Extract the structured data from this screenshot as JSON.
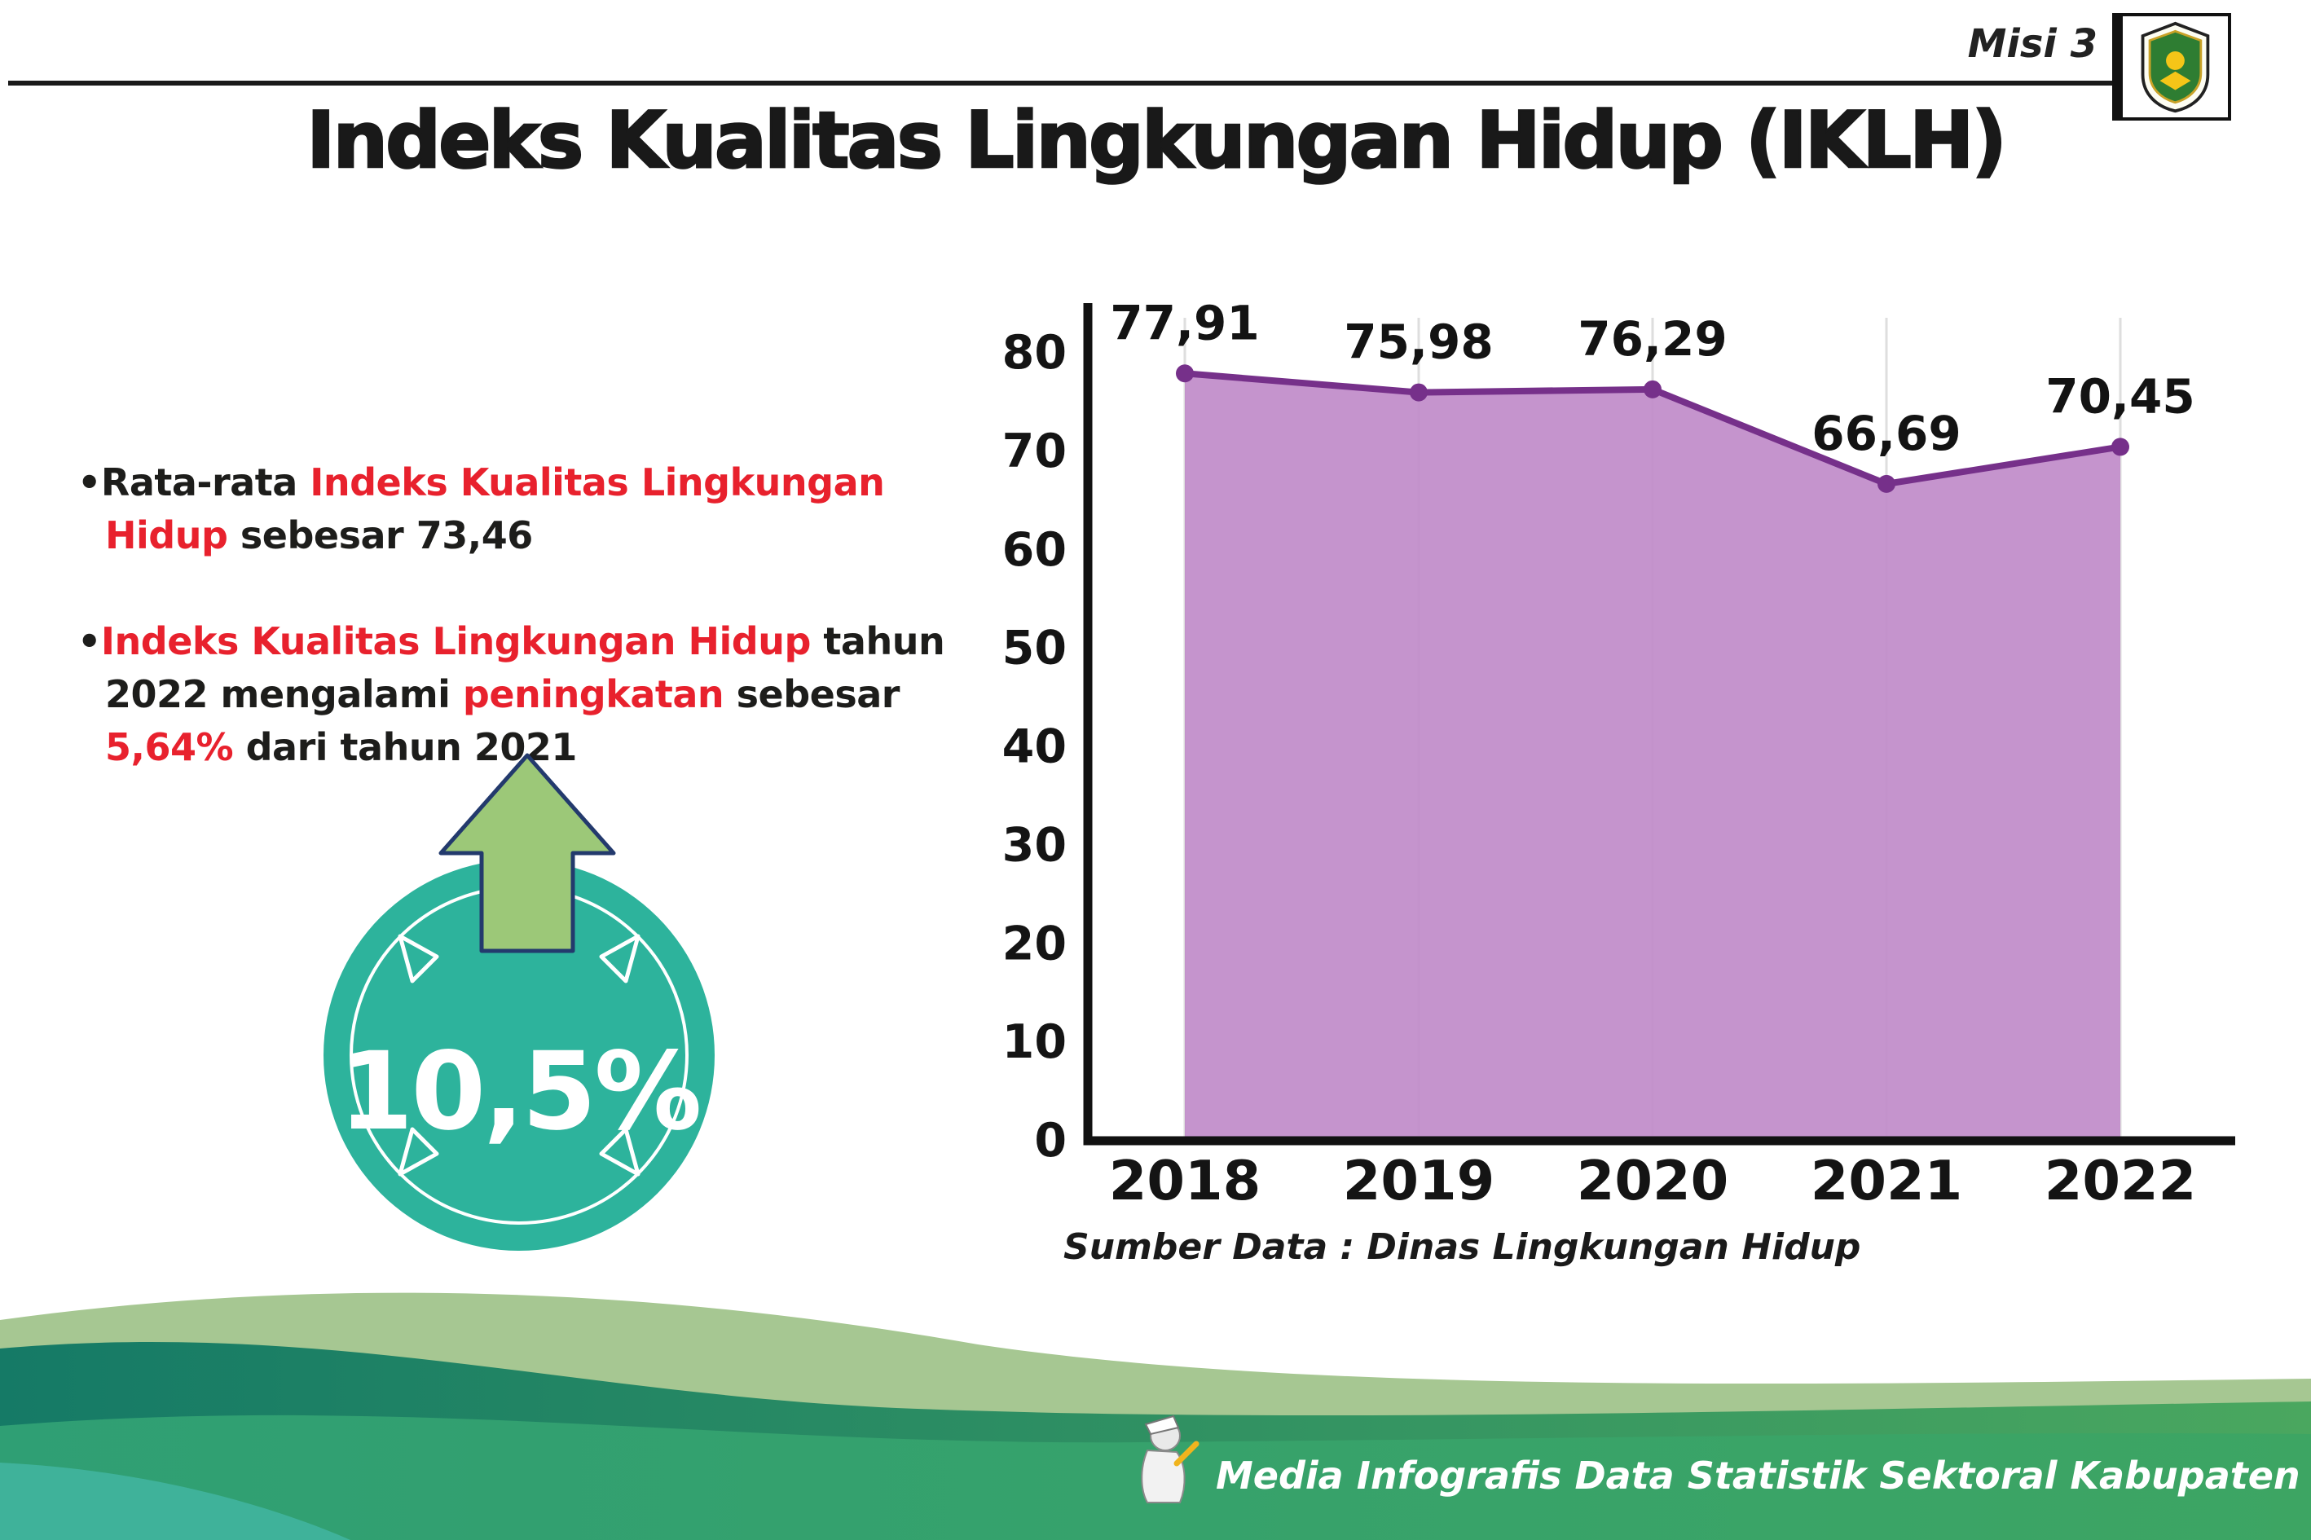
{
  "header": {
    "misi_label": "Misi 3"
  },
  "title": "Indeks Kualitas Lingkungan Hidup (IKLH)",
  "bullets": [
    {
      "segments": [
        {
          "text": "Rata-rata ",
          "color": "black"
        },
        {
          "text": "Indeks Kualitas Lingkungan Hidup",
          "color": "red"
        },
        {
          "text": " sebesar 73,46",
          "color": "black"
        }
      ]
    },
    {
      "segments": [
        {
          "text": "Indeks Kualitas Lingkungan Hidup",
          "color": "red"
        },
        {
          "text": " tahun 2022 mengalami ",
          "color": "black"
        },
        {
          "text": "peningkatan",
          "color": "red"
        },
        {
          "text": " sebesar ",
          "color": "black"
        },
        {
          "text": "5,64%",
          "color": "red"
        },
        {
          "text": " dari tahun 2021",
          "color": "black"
        }
      ]
    }
  ],
  "badge": {
    "value": "10,5%"
  },
  "chart_data": {
    "type": "area",
    "title": "Indeks Kualitas Lingkungan Hidup (IKLH) 2018-2022",
    "categories": [
      "2018",
      "2019",
      "2020",
      "2021",
      "2022"
    ],
    "values": [
      77.91,
      75.98,
      76.29,
      66.69,
      70.45
    ],
    "point_labels": [
      "77,91",
      "75,98",
      "76,29",
      "66,69",
      "70,45"
    ],
    "xlabel": "",
    "ylabel": "",
    "ylim": [
      0,
      80
    ],
    "yticks": [
      0,
      10,
      20,
      30,
      40,
      50,
      60,
      70,
      80
    ],
    "grid": "vertical-light",
    "legend": "none",
    "source": "Sumber Data : Dinas Lingkungan Hidup"
  },
  "footer": {
    "caption": "Media Infografis Data Statistik Sektoral Kabupaten Madiun |"
  },
  "colors": {
    "accent_red": "#e8212d",
    "text_dark": "#1d1d1b",
    "chart_fill": "#c18cc9",
    "chart_line": "#76308a",
    "axis": "#111111",
    "grid": "#dedede",
    "badge_circle": "#2db39c",
    "badge_arrow": "#9cc878",
    "badge_arrow_outline": "#233a6d",
    "footer_light_green": "#a6c792",
    "footer_teal": "#17806b",
    "footer_green": "#3aa06b"
  }
}
